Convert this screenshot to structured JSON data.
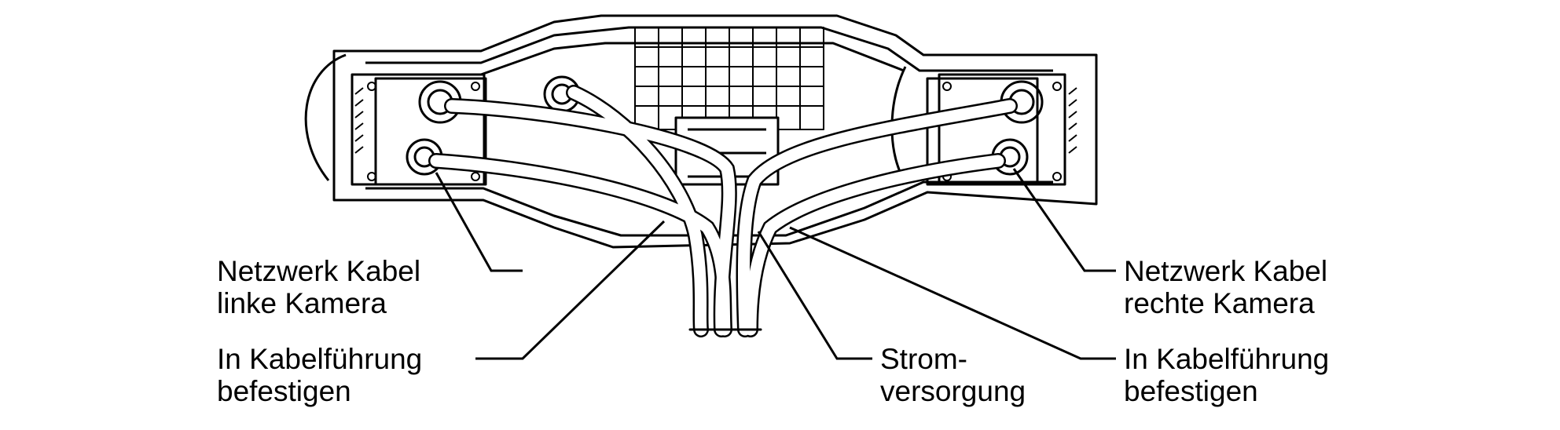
{
  "labels": {
    "left_cable": [
      "Netzwerk Kabel",
      "linke Kamera"
    ],
    "left_fix": [
      "In Kabelführung",
      "befestigen"
    ],
    "power": [
      "Strom-",
      "versorgung"
    ],
    "right_cable": [
      "Netzwerk Kabel",
      "rechte Kamera"
    ],
    "right_fix": [
      "In Kabelführung",
      "befestigen"
    ]
  },
  "colors": {
    "line": "#000000",
    "fill": "#ffffff",
    "shade": "#d9d9d9"
  }
}
